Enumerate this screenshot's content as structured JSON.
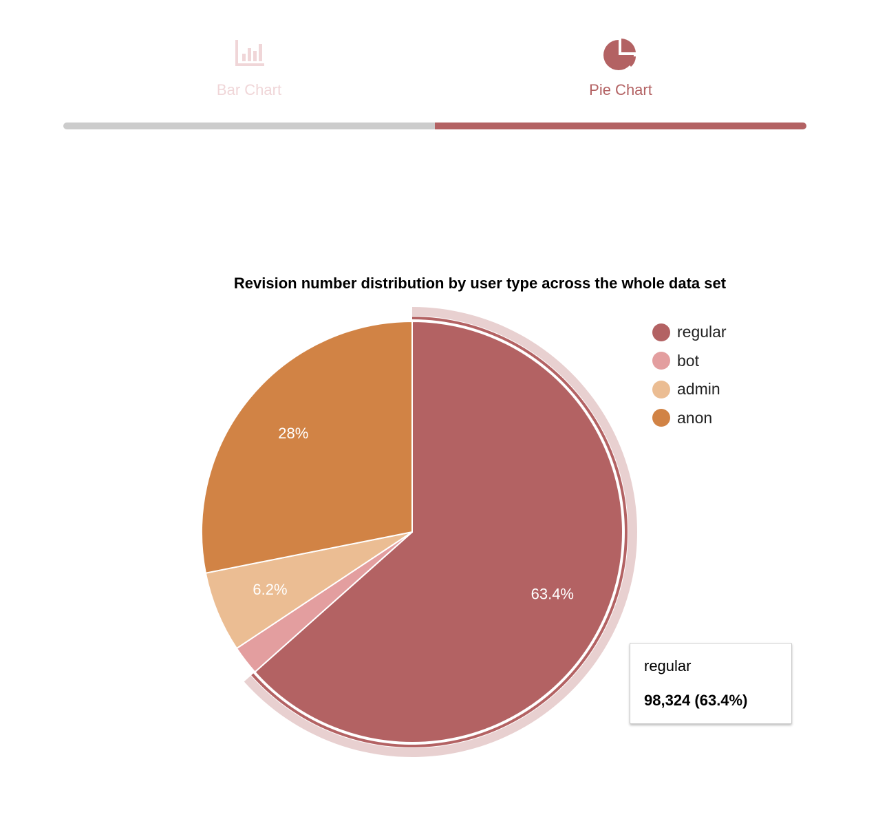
{
  "tabs": [
    {
      "label": "Bar Chart",
      "icon": "bar-chart-icon",
      "active": false
    },
    {
      "label": "Pie Chart",
      "icon": "pie-chart-icon",
      "active": true
    }
  ],
  "colors": {
    "regular": "#b36263",
    "bot": "#e39e9f",
    "admin": "#ebbd93",
    "anon": "#d18345",
    "tab_inactive": "#f0d6d8",
    "tab_active": "#b36263"
  },
  "chart_data": {
    "type": "pie",
    "title": "Revision number distribution by user type across the whole data set",
    "legend_position": "right",
    "slices": [
      {
        "name": "regular",
        "value": 98324,
        "percent_label": "63.4%",
        "color": "#b36263"
      },
      {
        "name": "bot",
        "value": 3500,
        "percent_label": "",
        "color": "#e39e9f"
      },
      {
        "name": "admin",
        "value": 9600,
        "percent_label": "6.2%",
        "color": "#ebbd93"
      },
      {
        "name": "anon",
        "value": 43600,
        "percent_label": "28%",
        "color": "#d18345"
      }
    ],
    "highlighted": "regular",
    "tooltip": {
      "name": "regular",
      "value_text": "98,324 (63.4%)"
    }
  }
}
